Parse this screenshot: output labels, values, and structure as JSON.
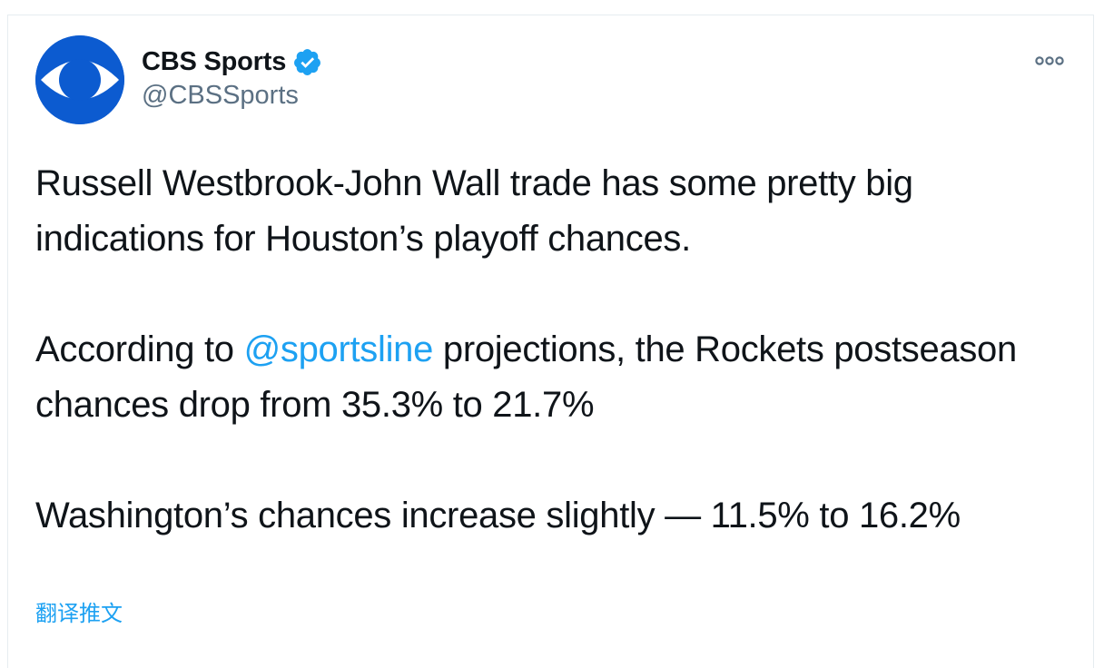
{
  "tweet": {
    "author": {
      "display_name": "CBS Sports",
      "handle": "@CBSSports",
      "verified": true,
      "avatar_icon": "cbs-eye-logo",
      "avatar_color": "#0c5bd0"
    },
    "more_icon": "more-options-icon",
    "body": {
      "line1": "Russell Westbrook-John Wall trade has some pretty big indications for Houston’s playoff chances.",
      "line2_prefix": "According to ",
      "line2_mention": "@sportsline",
      "line2_suffix": " projections, the Rockets postseason chances drop from 35.3% to 21.7%",
      "line3": "Washington’s chances increase slightly — 11.5% to 16.2%"
    },
    "translate_label": "翻译推文"
  },
  "colors": {
    "link": "#1da1f2",
    "verified": "#1da1f2",
    "text": "#0f1419",
    "secondary": "#5b7083",
    "border": "#e6ecf0"
  }
}
